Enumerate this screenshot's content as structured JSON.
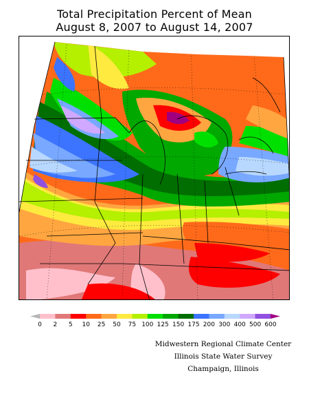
{
  "header": {
    "title_line1": "Total Precipitation Percent of Mean",
    "title_line2": "August 8, 2007 to August 14, 2007"
  },
  "legend": {
    "labels": [
      "0",
      "2",
      "5",
      "10",
      "25",
      "50",
      "75",
      "100",
      "125",
      "150",
      "175",
      "200",
      "300",
      "400",
      "500",
      "600"
    ],
    "colors": [
      "#b5b5b5",
      "#ffc0cb",
      "#e07878",
      "#ff0000",
      "#ff6a1a",
      "#ffa640",
      "#ffea40",
      "#b4f000",
      "#00e000",
      "#00a800",
      "#006e00",
      "#3c74ff",
      "#78a8ff",
      "#b8d8ff",
      "#d0a8ff",
      "#9050e0",
      "#a00080"
    ]
  },
  "credits": {
    "line1": "Midwestern Regional Climate Center",
    "line2": "Illinois State Water Survey",
    "line3": "Champaign, Illinois"
  },
  "map": {
    "background_color": "#ffffff",
    "boundary_color": "#000000"
  }
}
